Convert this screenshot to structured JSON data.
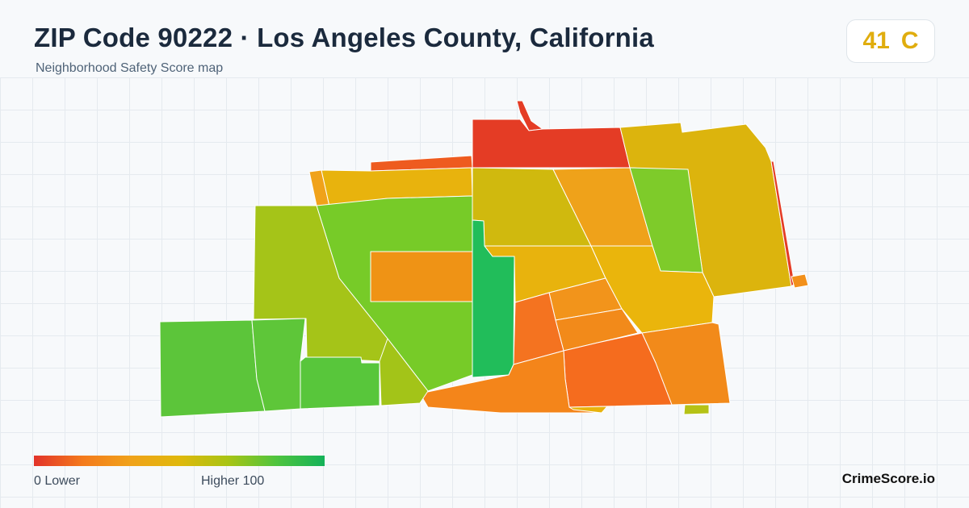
{
  "header": {
    "title": "ZIP Code 90222 · Los Angeles County, California",
    "subtitle": "Neighborhood Safety Score map"
  },
  "score": {
    "value": "41",
    "grade": "C",
    "color": "#e0ad0e"
  },
  "legend": {
    "min_label": "0  Lower",
    "max_label": "Higher  100",
    "colors": [
      "#e2332a",
      "#f47a1c",
      "#f0a21a",
      "#e0b80c",
      "#a9c414",
      "#4fc43e",
      "#14b259"
    ]
  },
  "brand": "CrimeScore.io",
  "map": {
    "icon": "choropleth-map",
    "background": "#f7f9fb",
    "grid_color": "#e5eaef",
    "regions": [
      {
        "name": "north-central",
        "color": "#e43c25"
      },
      {
        "name": "north-strip-west",
        "color": "#ee5b1f"
      },
      {
        "name": "northeast-large",
        "color": "#dcb40d"
      },
      {
        "name": "northwest-band",
        "color": "#e8b30d"
      },
      {
        "name": "central-north",
        "color": "#d0b90e"
      },
      {
        "name": "center-east-north",
        "color": "#efa21a"
      },
      {
        "name": "east-green-strip",
        "color": "#7ecb2a"
      },
      {
        "name": "west-green-large",
        "color": "#77cb28"
      },
      {
        "name": "west-olive",
        "color": "#a5c418"
      },
      {
        "name": "center-orange-block",
        "color": "#ef9315"
      },
      {
        "name": "emerald-strip",
        "color": "#21bd5a"
      },
      {
        "name": "center-yellow",
        "color": "#e8b30d"
      },
      {
        "name": "east-mid-yellow",
        "color": "#eab50c"
      },
      {
        "name": "small-orange-a",
        "color": "#f2941b"
      },
      {
        "name": "small-orange-b",
        "color": "#f28a1a"
      },
      {
        "name": "center-orange-red",
        "color": "#f47320"
      },
      {
        "name": "southeast-orange",
        "color": "#f28a1a"
      },
      {
        "name": "south-orange-red",
        "color": "#f56c1e"
      },
      {
        "name": "south-band",
        "color": "#f4851a"
      },
      {
        "name": "southwest-green",
        "color": "#5cc53a"
      },
      {
        "name": "southwest-green-2",
        "color": "#5ec639"
      },
      {
        "name": "south-green-small",
        "color": "#58c63b"
      },
      {
        "name": "south-olive",
        "color": "#a3c418"
      },
      {
        "name": "tiny-orange-east",
        "color": "#f2901a"
      },
      {
        "name": "tiny-olive-south",
        "color": "#b5c216"
      },
      {
        "name": "north-spur",
        "color": "#e43c25"
      },
      {
        "name": "northwest-nub",
        "color": "#f0a21a"
      }
    ]
  }
}
